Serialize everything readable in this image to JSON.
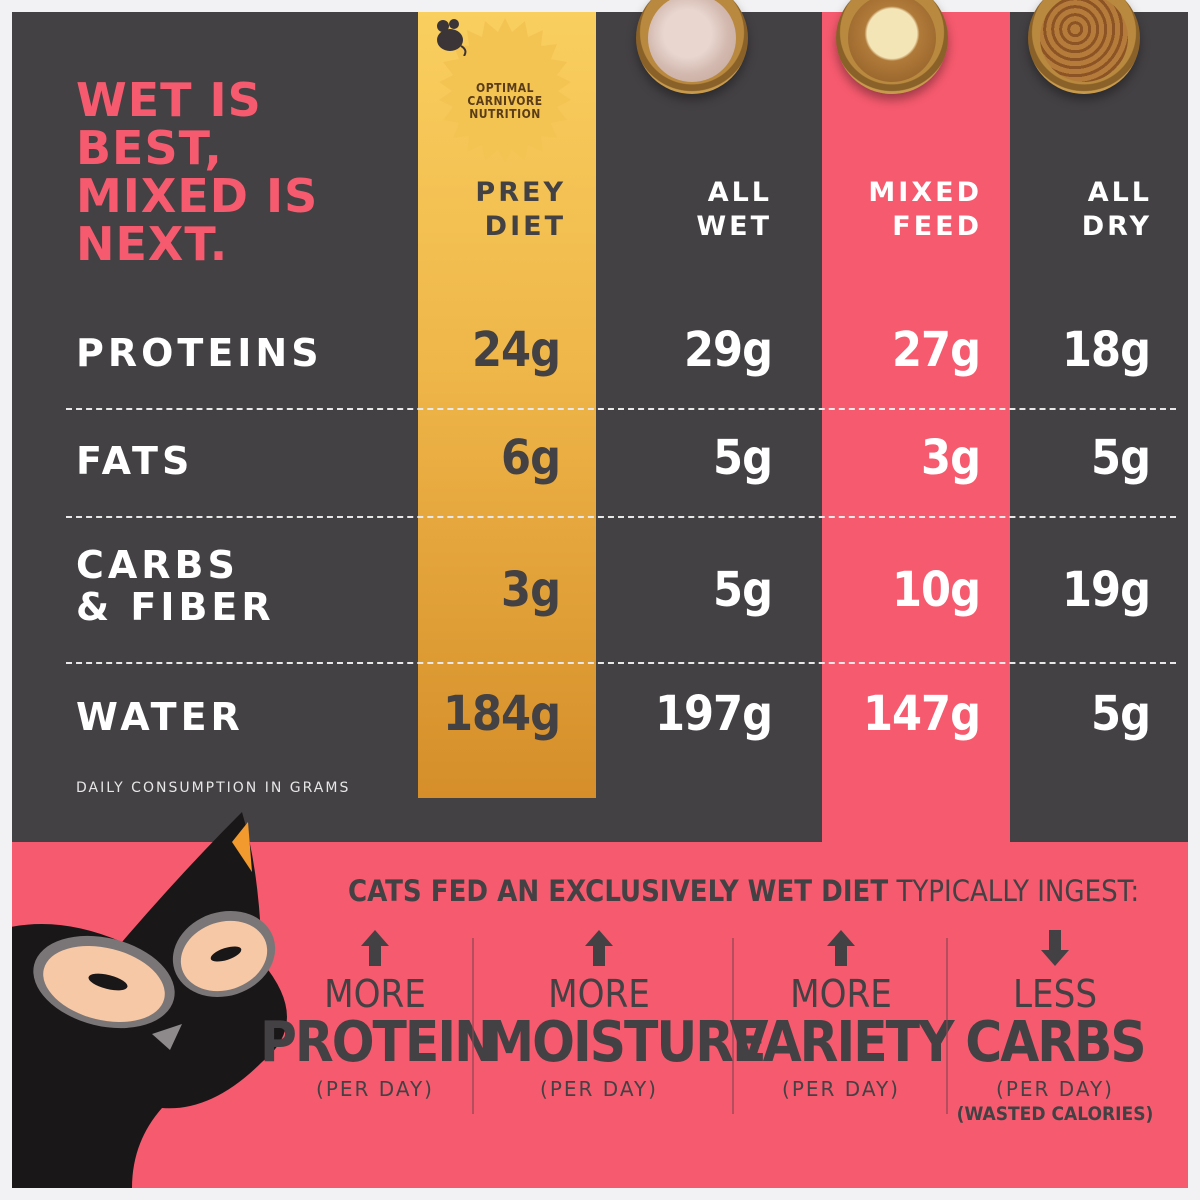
{
  "title": {
    "line1": "WET IS",
    "line2": "BEST,",
    "line3": "MIXED IS",
    "line4": "NEXT."
  },
  "badge": {
    "line1": "OPTIMAL",
    "line2": "CARNIVORE",
    "line3": "NUTRITION",
    "icon": "mouse-icon"
  },
  "columns": [
    {
      "line1": "PREY",
      "line2": "DIET"
    },
    {
      "line1": "ALL",
      "line2": "WET"
    },
    {
      "line1": "MIXED",
      "line2": "FEED"
    },
    {
      "line1": "ALL",
      "line2": "DRY"
    }
  ],
  "rows": [
    {
      "label1": "PROTEINS",
      "label2": "",
      "values": [
        "24g",
        "29g",
        "27g",
        "18g"
      ]
    },
    {
      "label1": "FATS",
      "label2": "",
      "values": [
        "6g",
        "5g",
        "3g",
        "5g"
      ]
    },
    {
      "label1": "CARBS",
      "label2": "& FIBER",
      "values": [
        "3g",
        "5g",
        "10g",
        "19g"
      ]
    },
    {
      "label1": "WATER",
      "label2": "",
      "values": [
        "184g",
        "197g",
        "147g",
        "5g"
      ]
    }
  ],
  "note": "DAILY CONSUMPTION IN GRAMS",
  "headline": {
    "bold": "CATS FED AN EXCLUSIVELY WET DIET",
    "regular": " TYPICALLY INGEST:"
  },
  "benefits": [
    {
      "direction": "up",
      "small": "MORE",
      "big": "PROTEIN",
      "per": "(PER DAY)",
      "extra": ""
    },
    {
      "direction": "up",
      "small": "MORE",
      "big": "MOISTURE",
      "per": "(PER DAY)",
      "extra": ""
    },
    {
      "direction": "up",
      "small": "MORE",
      "big": "VARIETY",
      "per": "(PER DAY)",
      "extra": ""
    },
    {
      "direction": "down",
      "small": "LESS",
      "big": "CARBS",
      "per": "(PER DAY)",
      "extra": "(WASTED CALORIES)"
    }
  ],
  "colors": {
    "dark": "#444144",
    "pink": "#f65a6e",
    "gold_top": "#f9cf5f",
    "gold_bottom": "#d58e2a"
  }
}
